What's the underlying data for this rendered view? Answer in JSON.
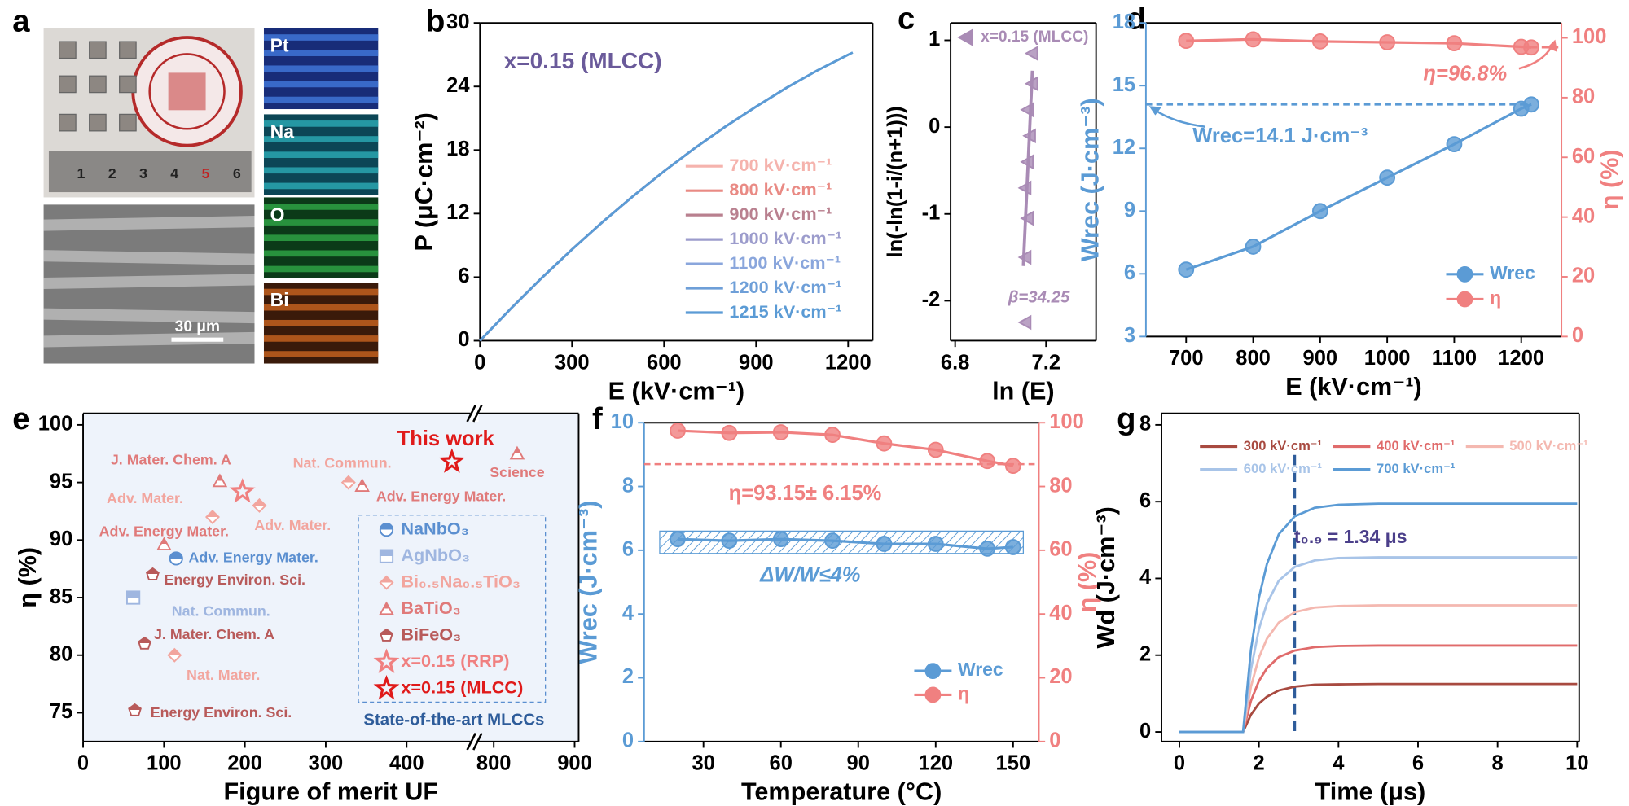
{
  "image_panel": {
    "panel": "a",
    "maps": [
      "Pt",
      "Na",
      "O",
      "Bi"
    ],
    "scale_bar": "30 μm",
    "ruler_marks": [
      "1",
      "2",
      "3",
      "4",
      "5",
      "6"
    ]
  },
  "chart_data": [
    {
      "panel": "b",
      "type": "line",
      "annotations": [
        "x=0.15 (MLCC)"
      ],
      "xlabel": "E (kV·cm⁻¹)",
      "ylabel": "P (μC·cm⁻²)",
      "xlim": [
        0,
        1280
      ],
      "xticks": [
        0,
        300,
        600,
        900,
        1200
      ],
      "ylim": [
        0,
        30
      ],
      "yticks": [
        0,
        6,
        12,
        18,
        24,
        30
      ],
      "legend": "lower right",
      "series": [
        {
          "name": "700 kV·cm⁻¹",
          "color": "#f5b3ad",
          "x": [
            0,
            100,
            200,
            300,
            400,
            500,
            600,
            700
          ],
          "values": [
            0,
            3.01,
            5.89,
            8.62,
            11.22,
            13.68,
            16.0,
            18.18
          ]
        },
        {
          "name": "800 kV·cm⁻¹",
          "color": "#e98a84",
          "x": [
            0,
            100,
            200,
            300,
            400,
            500,
            600,
            700,
            800
          ],
          "values": [
            0,
            3.01,
            5.89,
            8.62,
            11.22,
            13.68,
            16.0,
            18.18,
            20.22
          ]
        },
        {
          "name": "900 kV·cm⁻¹",
          "color": "#b9808f",
          "x": [
            0,
            100,
            200,
            300,
            400,
            500,
            600,
            700,
            800,
            900
          ],
          "values": [
            0,
            3.01,
            5.89,
            8.62,
            11.22,
            13.68,
            16.0,
            18.18,
            20.22,
            22.1
          ]
        },
        {
          "name": "1000 kV·cm⁻¹",
          "color": "#9c9ccc",
          "x": [
            0,
            100,
            200,
            300,
            400,
            500,
            600,
            700,
            800,
            900,
            1000
          ],
          "values": [
            0,
            3.01,
            5.89,
            8.62,
            11.22,
            13.68,
            16.0,
            18.18,
            20.22,
            22.1,
            23.89
          ]
        },
        {
          "name": "1100 kV·cm⁻¹",
          "color": "#8aa6dc",
          "x": [
            0,
            100,
            200,
            300,
            400,
            500,
            600,
            700,
            800,
            900,
            1000,
            1100
          ],
          "values": [
            0,
            3.01,
            5.89,
            8.62,
            11.22,
            13.68,
            16.0,
            18.18,
            20.22,
            22.1,
            23.89,
            25.52
          ]
        },
        {
          "name": "1200 kV·cm⁻¹",
          "color": "#6e9fd8",
          "x": [
            0,
            100,
            200,
            300,
            400,
            500,
            600,
            700,
            800,
            900,
            1000,
            1100,
            1200
          ],
          "values": [
            0,
            3.01,
            5.89,
            8.62,
            11.22,
            13.68,
            16.0,
            18.18,
            20.22,
            22.1,
            23.89,
            25.52,
            27.0
          ]
        },
        {
          "name": "1215 kV·cm⁻¹",
          "color": "#5b9bd5",
          "x": [
            0,
            100,
            200,
            300,
            400,
            500,
            600,
            700,
            800,
            900,
            1000,
            1100,
            1200,
            1215
          ],
          "values": [
            0,
            3.01,
            5.89,
            8.62,
            11.22,
            13.68,
            16.0,
            18.18,
            20.22,
            22.1,
            23.89,
            25.52,
            27.0,
            27.21
          ]
        }
      ]
    },
    {
      "panel": "c",
      "type": "scatter",
      "xlabel": "ln (E)",
      "ylabel": "ln(-ln(1-i/(n+1)))",
      "xlim": [
        6.78,
        7.42
      ],
      "xticks": [
        6.8,
        7.2
      ],
      "ylim": [
        -2.46,
        1.2
      ],
      "yticks": [
        -2,
        -1,
        0,
        1
      ],
      "annotations": [
        "β=34.25"
      ],
      "legend": "upper right",
      "fit": {
        "x": [
          7.1,
          7.14
        ],
        "values": [
          -1.6,
          0.65
        ]
      },
      "series": [
        {
          "name": "x=0.15 (MLCC)",
          "color": "#a98bb5",
          "marker": "triangle-left",
          "x": [
            7.14,
            7.14,
            7.12,
            7.13,
            7.12,
            7.11,
            7.12,
            7.11,
            7.11
          ],
          "values": [
            0.85,
            0.5,
            0.2,
            -0.1,
            -0.4,
            -0.7,
            -1.05,
            -1.5,
            -2.25
          ]
        }
      ]
    },
    {
      "panel": "d",
      "type": "line",
      "xlabel": "E (kV·cm⁻¹)",
      "ylabel": "Wrec (J·cm⁻³)",
      "y2label": "η (%)",
      "xlim": [
        640,
        1260
      ],
      "xticks": [
        700,
        800,
        900,
        1000,
        1100,
        1200
      ],
      "ylim": [
        3,
        18
      ],
      "yticks": [
        3,
        6,
        9,
        12,
        15,
        18
      ],
      "y2lim": [
        0,
        105
      ],
      "y2ticks": [
        0,
        20,
        40,
        60,
        80,
        100
      ],
      "y_color": "#5b9bd5",
      "y2_color": "#f08080",
      "annotations": [
        "Wrec=14.1 J·cm⁻³",
        "η=96.8%"
      ],
      "legend": "lower right",
      "series": [
        {
          "name": "Wrec",
          "color": "#5b9bd5",
          "marker": "circle",
          "x": [
            700,
            800,
            900,
            1000,
            1100,
            1200,
            1215
          ],
          "values": [
            6.2,
            7.3,
            9.0,
            10.6,
            12.2,
            13.9,
            14.1
          ]
        },
        {
          "name": "η",
          "color": "#f08080",
          "marker": "circle",
          "axis": "y2",
          "x": [
            700,
            800,
            900,
            1000,
            1100,
            1200,
            1215
          ],
          "values": [
            99,
            99.5,
            98.8,
            98.5,
            98.2,
            97.0,
            96.8
          ]
        }
      ]
    },
    {
      "panel": "e",
      "type": "scatter",
      "xlabel": "Figure of merit UF",
      "ylabel": "η (%)",
      "xlim": [
        0,
        905
      ],
      "xbreak": [
        480,
        780
      ],
      "xticks": [
        0,
        100,
        200,
        300,
        400,
        800,
        900
      ],
      "ylim": [
        72.5,
        101
      ],
      "yticks": [
        75,
        80,
        85,
        90,
        95,
        100
      ],
      "legend": "lower right",
      "legend_title": "State-of-the-art MLCCs",
      "series": [
        {
          "name": "NaNbO₃",
          "color": "#5b8fd0",
          "marker": "circle",
          "x": [
            115
          ],
          "values": [
            88.4
          ],
          "labels": [
            "Adv. Energy Mater."
          ]
        },
        {
          "name": "AgNbO₃",
          "color": "#9fb6e0",
          "marker": "square",
          "x": [
            62
          ],
          "values": [
            85
          ],
          "labels": [
            "Nat. Commun."
          ]
        },
        {
          "name": "Bi₀.₅Na₀.₅TiO₃",
          "color": "#f2a59e",
          "marker": "diamond",
          "x": [
            160,
            218,
            113,
            328
          ],
          "values": [
            92,
            93,
            80,
            95
          ],
          "labels": [
            "Adv. Mater.",
            "Adv. Mater.",
            "Nat. Mater.",
            "Nat. Commun."
          ]
        },
        {
          "name": "BaTiO₃",
          "color": "#e07a7a",
          "marker": "triangle",
          "x": [
            169,
            100,
            345,
            829
          ],
          "values": [
            95.1,
            89.6,
            94.7,
            97.5
          ],
          "labels": [
            "J. Mater. Chem. A",
            "Adv. Energy Mater.",
            "Adv. Energy Mater.",
            "Science"
          ]
        },
        {
          "name": "BiFeO₃",
          "color": "#b85a5a",
          "marker": "pentagon",
          "x": [
            86,
            76,
            64
          ],
          "values": [
            87,
            81,
            75.2
          ],
          "labels": [
            "Energy Environ. Sci.",
            "J. Mater. Chem. A",
            "Energy Environ. Sci."
          ]
        },
        {
          "name": "x=0.15 (RRP)",
          "color": "#f08080",
          "marker": "star",
          "x": [
            197
          ],
          "values": [
            94.2
          ]
        },
        {
          "name": "x=0.15 (MLCC)",
          "color": "#e01a1a",
          "marker": "star",
          "x": [
            456
          ],
          "values": [
            96.8
          ],
          "labels": [
            "This work"
          ]
        }
      ]
    },
    {
      "panel": "f",
      "type": "line",
      "xlabel": "Temperature (°C)",
      "ylabel": "Wrec (J·cm⁻³)",
      "y2label": "η (%)",
      "xlim": [
        7,
        160
      ],
      "xticks": [
        30,
        60,
        90,
        120,
        150
      ],
      "ylim": [
        0,
        10
      ],
      "yticks": [
        0,
        2,
        4,
        6,
        8,
        10
      ],
      "y2lim": [
        0,
        100
      ],
      "y2ticks": [
        0,
        20,
        40,
        60,
        80,
        100
      ],
      "y_color": "#5b9bd5",
      "y2_color": "#f08080",
      "annotations": [
        "η=93.15± 6.15%",
        "ΔW/W≤4%"
      ],
      "band": [
        5.9,
        6.6
      ],
      "y2_reference": 87,
      "legend": "lower right",
      "series": [
        {
          "name": "Wrec",
          "color": "#5b9bd5",
          "marker": "circle",
          "x": [
            20,
            40,
            60,
            80,
            100,
            120,
            140,
            150
          ],
          "values": [
            6.35,
            6.3,
            6.35,
            6.3,
            6.2,
            6.2,
            6.05,
            6.1
          ]
        },
        {
          "name": "η",
          "color": "#f08080",
          "marker": "circle",
          "axis": "y2",
          "x": [
            20,
            40,
            60,
            80,
            100,
            120,
            140,
            150
          ],
          "values": [
            97.5,
            96.8,
            97.0,
            96.2,
            93.5,
            91.5,
            88,
            86.5
          ]
        }
      ]
    },
    {
      "panel": "g",
      "type": "line",
      "xlabel": "Time (μs)",
      "ylabel": "Wd (J·cm⁻³)",
      "xlim": [
        -0.45,
        10.05
      ],
      "xticks": [
        0,
        2,
        4,
        6,
        8,
        10
      ],
      "ylim": [
        -0.25,
        8.3
      ],
      "yticks": [
        0,
        2,
        4,
        6,
        8
      ],
      "annotations": [
        "t₀.₉ = 1.34 μs"
      ],
      "x_reference": 2.9,
      "legend": "upper left",
      "series": [
        {
          "name": "300 kV·cm⁻¹",
          "color": "#a84a40",
          "x": [
            0,
            1.6,
            1.8,
            2,
            2.2,
            2.5,
            2.9,
            3.4,
            4,
            5,
            6,
            8,
            10
          ],
          "values": [
            0,
            0,
            0.45,
            0.74,
            0.92,
            1.08,
            1.18,
            1.23,
            1.24,
            1.25,
            1.25,
            1.25,
            1.25
          ]
        },
        {
          "name": "400 kV·cm⁻¹",
          "color": "#e06b6b",
          "x": [
            0,
            1.6,
            1.8,
            2,
            2.2,
            2.5,
            2.9,
            3.4,
            4,
            5,
            6,
            8,
            10
          ],
          "values": [
            0,
            0,
            0.81,
            1.33,
            1.66,
            1.95,
            2.12,
            2.21,
            2.24,
            2.25,
            2.25,
            2.25,
            2.25
          ]
        },
        {
          "name": "500 kV·cm⁻¹",
          "color": "#f4b8b0",
          "x": [
            0,
            1.6,
            1.8,
            2,
            2.2,
            2.5,
            2.9,
            3.4,
            4,
            5,
            6,
            8,
            10
          ],
          "values": [
            0,
            0,
            1.18,
            1.94,
            2.43,
            2.85,
            3.12,
            3.24,
            3.28,
            3.3,
            3.3,
            3.3,
            3.3
          ]
        },
        {
          "name": "600 kV·cm⁻¹",
          "color": "#a8c4e8",
          "x": [
            0,
            1.6,
            1.8,
            2,
            2.2,
            2.5,
            2.9,
            3.4,
            4,
            5,
            6,
            8,
            10
          ],
          "values": [
            0,
            0,
            1.63,
            2.68,
            3.35,
            3.94,
            4.3,
            4.47,
            4.53,
            4.55,
            4.55,
            4.55,
            4.55
          ]
        },
        {
          "name": "700 kV·cm⁻¹",
          "color": "#5b9bd5",
          "x": [
            0,
            1.6,
            1.8,
            2,
            2.2,
            2.5,
            2.9,
            3.4,
            4,
            5,
            6,
            8,
            10
          ],
          "values": [
            0,
            0,
            2.14,
            3.5,
            4.38,
            5.15,
            5.62,
            5.84,
            5.92,
            5.95,
            5.95,
            5.95,
            5.95
          ]
        }
      ]
    }
  ]
}
